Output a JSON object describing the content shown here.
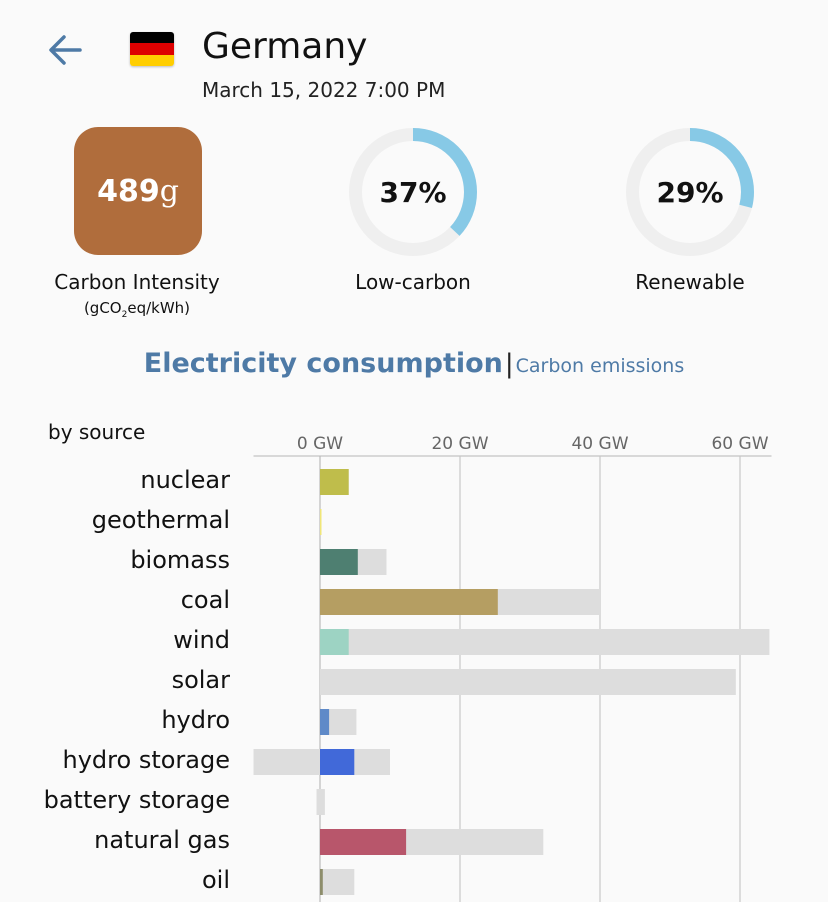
{
  "header": {
    "back_icon": "back-arrow-icon",
    "flag_icon": "germany-flag-icon",
    "flag_colors": [
      "#000000",
      "#dd0000",
      "#ffce00"
    ],
    "country": "Germany",
    "datetime": "March 15, 2022 7:00 PM"
  },
  "stats": {
    "carbon_intensity": {
      "value": "489",
      "unit": "g",
      "label": "Carbon Intensity",
      "unit_label_pre": "(gCO",
      "unit_label_sub": "2",
      "unit_label_post": "eq/kWh)",
      "color": "#b06d3c"
    },
    "low_carbon": {
      "value": "37%",
      "label": "Low-carbon",
      "fraction": 0.37,
      "color": "#87c9e6",
      "track": "#efefef"
    },
    "renewable": {
      "value": "29%",
      "label": "Renewable",
      "fraction": 0.29,
      "color": "#87c9e6",
      "track": "#efefef"
    }
  },
  "tabs": {
    "active": "Electricity consumption",
    "separator": "|",
    "inactive": "Carbon emissions"
  },
  "chart_heading": "by source",
  "chart_data": {
    "type": "bar",
    "orientation": "horizontal",
    "x_unit": "GW",
    "xlim": [
      -9.5,
      64.5
    ],
    "x_ticks": [
      0,
      20,
      40,
      60
    ],
    "x_tick_labels": [
      "0 GW",
      "20 GW",
      "40 GW",
      "60 GW"
    ],
    "grid": true,
    "categories": [
      "nuclear",
      "geothermal",
      "biomass",
      "coal",
      "wind",
      "solar",
      "hydro",
      "hydro storage",
      "battery storage",
      "natural gas",
      "oil"
    ],
    "series": [
      {
        "values": [
          4.1,
          0.1,
          5.4,
          25.4,
          4.1,
          0.0,
          1.3,
          4.9,
          0.0,
          12.3,
          0.4
        ],
        "colors": [
          "#bfbd4b",
          "#f0e678",
          "#4e7f71",
          "#b59e62",
          "#9dd3c3",
          "#f5d23a",
          "#5f8ac8",
          "#4169d9",
          "#888888",
          "#b8566b",
          "#8d8d6b"
        ]
      },
      {
        "min": [
          0,
          0,
          0,
          0,
          0,
          0,
          0,
          -9.5,
          -0.5,
          0,
          0
        ],
        "max": [
          4.1,
          0.1,
          9.5,
          40.0,
          64.2,
          59.4,
          5.2,
          10.0,
          0.7,
          31.9,
          4.9
        ],
        "color": "#dddddd"
      }
    ]
  }
}
